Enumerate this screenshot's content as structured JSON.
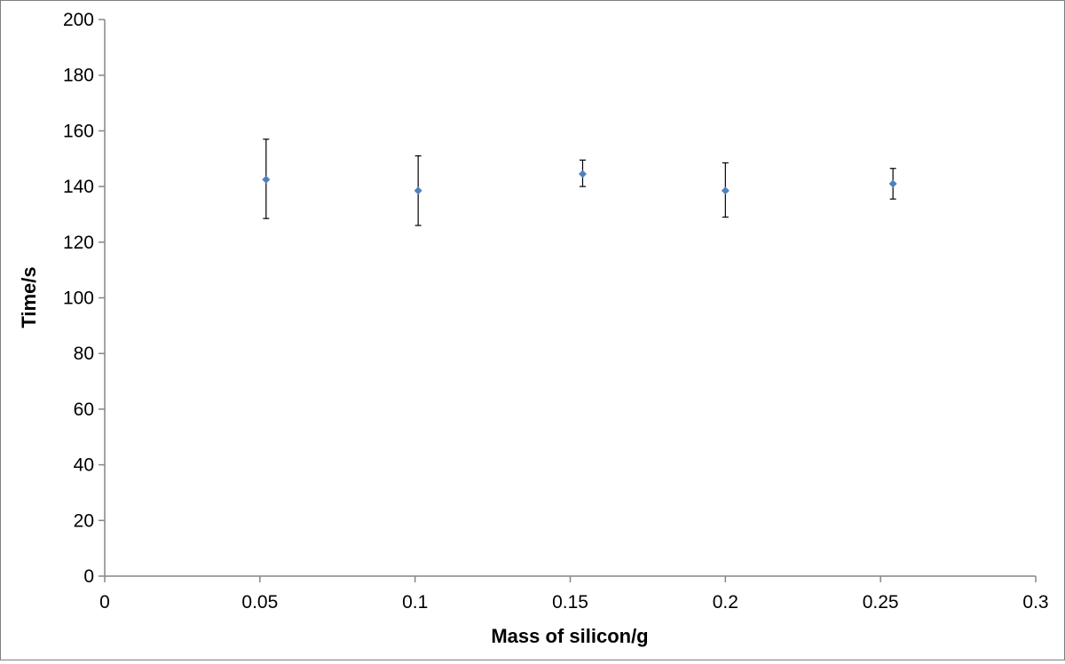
{
  "chart_data": {
    "type": "scatter",
    "title": "",
    "xlabel": "Mass of silicon/g",
    "ylabel": "Time/s",
    "xlim": [
      0,
      0.3
    ],
    "ylim": [
      0,
      200
    ],
    "x_ticks": [
      "0",
      "0.05",
      "0.1",
      "0.15",
      "0.2",
      "0.25",
      "0.3"
    ],
    "y_ticks": [
      "0",
      "20",
      "40",
      "60",
      "80",
      "100",
      "120",
      "140",
      "160",
      "180",
      "200"
    ],
    "grid": false,
    "legend": "none",
    "marker": "diamond",
    "colors": {
      "marker": "#4f81bd",
      "error_bar": "#000000",
      "axis": "#868686"
    },
    "series": [
      {
        "points": [
          {
            "x": 0.052,
            "y": 142.5,
            "err_low": 128.5,
            "err_high": 157
          },
          {
            "x": 0.101,
            "y": 138.5,
            "err_low": 126,
            "err_high": 151
          },
          {
            "x": 0.154,
            "y": 144.5,
            "err_low": 140,
            "err_high": 149.5
          },
          {
            "x": 0.2,
            "y": 138.5,
            "err_low": 129,
            "err_high": 148.5
          },
          {
            "x": 0.254,
            "y": 141,
            "err_low": 135.5,
            "err_high": 146.5
          }
        ]
      }
    ]
  }
}
